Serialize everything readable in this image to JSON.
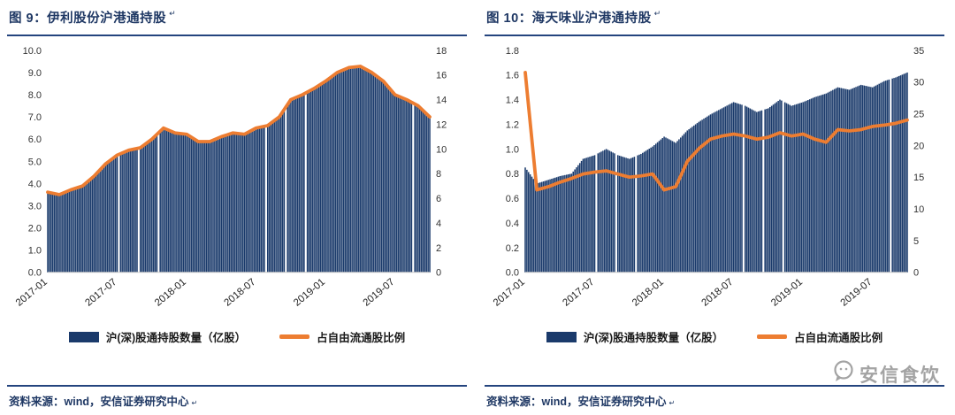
{
  "colors": {
    "navy": "#1F3864",
    "rule": "#24447E",
    "bar": "#1A3A6B",
    "line": "#ED7D31",
    "tick": "#333333",
    "watermark": "#A3A3A3"
  },
  "watermark": {
    "text": "安信食饮"
  },
  "chart_data": [
    {
      "type": "bar",
      "title": "图 9：伊利股份沪港通持股",
      "title_mark": "↵",
      "source": "资料来源：wind，安信证券研究中心",
      "source_mark": "↵",
      "legend": [
        {
          "type": "bar",
          "label": "沪(深)股通持股数量（亿股）"
        },
        {
          "type": "line",
          "label": "占自由流通股比例"
        }
      ],
      "legend_position": "bottom",
      "grid": false,
      "xlabel": "",
      "ylabel": "",
      "categories": [
        "2017-01",
        "2017-02",
        "2017-03",
        "2017-04",
        "2017-05",
        "2017-06",
        "2017-07",
        "2017-08",
        "2017-09",
        "2017-10",
        "2017-11",
        "2017-12",
        "2018-01",
        "2018-02",
        "2018-03",
        "2018-04",
        "2018-05",
        "2018-06",
        "2018-07",
        "2018-08",
        "2018-09",
        "2018-10",
        "2018-11",
        "2018-12",
        "2019-01",
        "2019-02",
        "2019-03",
        "2019-04",
        "2019-05",
        "2019-06",
        "2019-07",
        "2019-08",
        "2019-09",
        "2019-10"
      ],
      "x_ticks": [
        "2017-01",
        "2017-07",
        "2018-01",
        "2018-07",
        "2019-01",
        "2019-07"
      ],
      "left_axis": {
        "min": 0,
        "max": 10,
        "step": 1,
        "decimals": 1
      },
      "right_axis": {
        "min": 0,
        "max": 18,
        "step": 2,
        "decimals": 0
      },
      "series": [
        {
          "name": "沪(深)股通持股数量（亿股）",
          "type": "bar",
          "axis": "left",
          "values": [
            3.6,
            3.5,
            3.7,
            3.9,
            4.3,
            4.9,
            5.3,
            5.5,
            5.6,
            6.0,
            6.5,
            6.3,
            6.2,
            5.9,
            5.9,
            6.1,
            6.3,
            6.2,
            6.5,
            6.6,
            7.0,
            7.8,
            8.0,
            8.3,
            8.6,
            9.0,
            9.2,
            9.3,
            9.0,
            8.6,
            8.0,
            7.8,
            7.5,
            7.0
          ]
        },
        {
          "name": "占自由流通股比例",
          "type": "line",
          "axis": "right",
          "values": [
            6.5,
            6.3,
            6.7,
            7.0,
            7.8,
            8.8,
            9.5,
            9.9,
            10.1,
            10.8,
            11.7,
            11.3,
            11.2,
            10.6,
            10.6,
            11.0,
            11.3,
            11.2,
            11.7,
            11.9,
            12.6,
            14.0,
            14.4,
            14.9,
            15.5,
            16.2,
            16.6,
            16.7,
            16.2,
            15.5,
            14.4,
            14.0,
            13.5,
            12.6
          ]
        }
      ]
    },
    {
      "type": "bar",
      "title": "图 10：海天味业沪港通持股",
      "title_mark": "↵",
      "source": "资料来源：wind，安信证券研究中心",
      "source_mark": "↵",
      "legend": [
        {
          "type": "bar",
          "label": "沪(深)股通持股数量（亿股）"
        },
        {
          "type": "line",
          "label": "占自由流通股比例"
        }
      ],
      "legend_position": "bottom",
      "grid": false,
      "xlabel": "",
      "ylabel": "",
      "categories": [
        "2017-01",
        "2017-02",
        "2017-03",
        "2017-04",
        "2017-05",
        "2017-06",
        "2017-07",
        "2017-08",
        "2017-09",
        "2017-10",
        "2017-11",
        "2017-12",
        "2018-01",
        "2018-02",
        "2018-03",
        "2018-04",
        "2018-05",
        "2018-06",
        "2018-07",
        "2018-08",
        "2018-09",
        "2018-10",
        "2018-11",
        "2018-12",
        "2019-01",
        "2019-02",
        "2019-03",
        "2019-04",
        "2019-05",
        "2019-06",
        "2019-07",
        "2019-08",
        "2019-09",
        "2019-10"
      ],
      "x_ticks": [
        "2017-01",
        "2017-07",
        "2018-01",
        "2018-07",
        "2019-01",
        "2019-07"
      ],
      "left_axis": {
        "min": 0,
        "max": 1.8,
        "step": 0.2,
        "decimals": 1
      },
      "right_axis": {
        "min": 0,
        "max": 35,
        "step": 5,
        "decimals": 0
      },
      "series": [
        {
          "name": "沪(深)股通持股数量（亿股）",
          "type": "bar",
          "axis": "left",
          "values": [
            0.85,
            0.72,
            0.75,
            0.78,
            0.8,
            0.92,
            0.95,
            1.0,
            0.95,
            0.92,
            0.96,
            1.02,
            1.1,
            1.05,
            1.15,
            1.22,
            1.28,
            1.33,
            1.38,
            1.35,
            1.3,
            1.33,
            1.4,
            1.35,
            1.38,
            1.42,
            1.45,
            1.5,
            1.48,
            1.52,
            1.5,
            1.55,
            1.58,
            1.62
          ]
        },
        {
          "name": "占自由流通股比例",
          "type": "line",
          "axis": "right",
          "values": [
            31.5,
            13.0,
            13.5,
            14.2,
            14.8,
            15.5,
            15.8,
            16.0,
            15.5,
            15.0,
            15.2,
            15.5,
            13.0,
            13.5,
            17.5,
            19.5,
            21.0,
            21.5,
            21.8,
            21.5,
            21.0,
            21.3,
            22.0,
            21.5,
            21.8,
            21.0,
            20.5,
            22.5,
            22.3,
            22.5,
            23.0,
            23.2,
            23.5,
            24.0
          ]
        }
      ]
    }
  ]
}
